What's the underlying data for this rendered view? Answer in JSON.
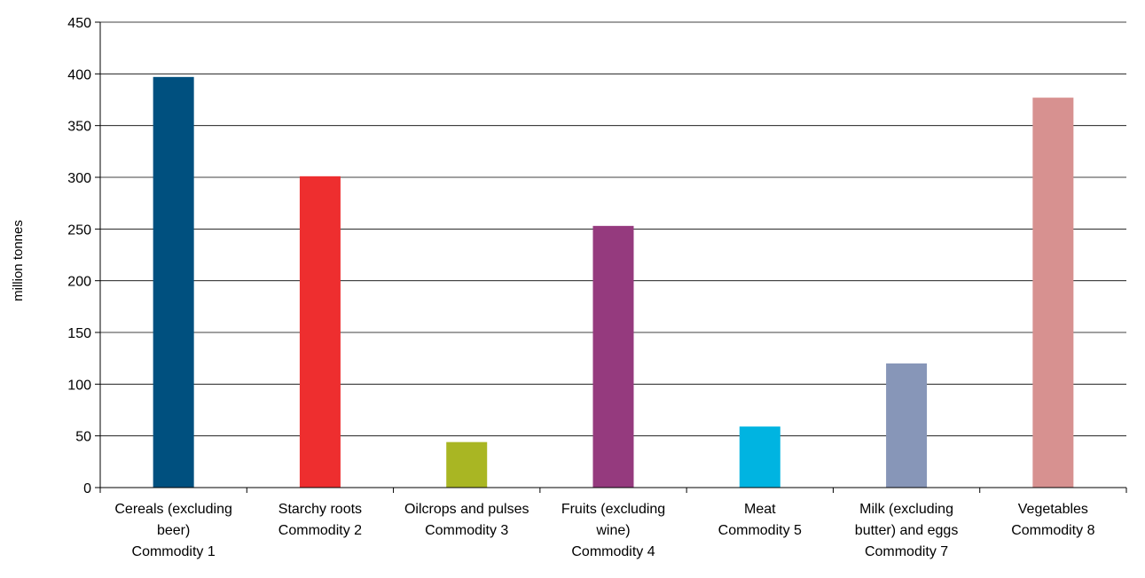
{
  "chart_data": {
    "type": "bar",
    "title": "",
    "xlabel": "",
    "ylabel": "million tonnes",
    "ylim": [
      0,
      450
    ],
    "yticks": [
      0,
      50,
      100,
      150,
      200,
      250,
      300,
      350,
      400,
      450
    ],
    "grid": true,
    "legend": "none",
    "categories": [
      [
        "Cereals (excluding",
        "beer)",
        "Commodity 1"
      ],
      [
        "Starchy roots",
        "Commodity 2"
      ],
      [
        "Oilcrops and pulses",
        "Commodity 3"
      ],
      [
        "Fruits (excluding",
        "wine)",
        "Commodity 4"
      ],
      [
        "Meat",
        "Commodity 5"
      ],
      [
        "Milk (excluding",
        "butter) and eggs",
        "Commodity 7"
      ],
      [
        "Vegetables",
        "Commodity 8"
      ]
    ],
    "values": [
      397,
      301,
      44,
      253,
      59,
      120,
      377
    ],
    "colors": [
      "#00507f",
      "#ee2e2f",
      "#a9b623",
      "#953a7e",
      "#00b4e1",
      "#8796b8",
      "#d79190"
    ]
  }
}
